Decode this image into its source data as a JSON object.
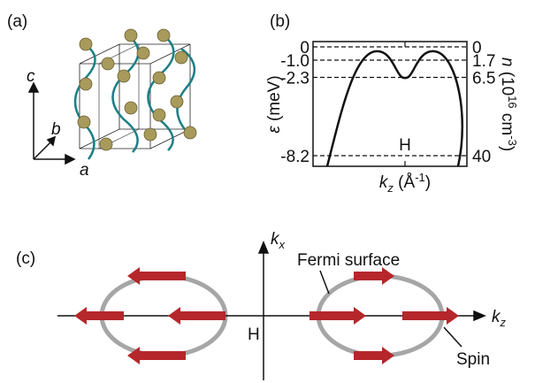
{
  "panel_a": {
    "label": "(a)",
    "axis_labels": {
      "c": "c",
      "b": "b",
      "a": "a"
    }
  },
  "panel_b": {
    "label": "(b)",
    "y_label": [
      "ε",
      " (meV)"
    ],
    "y2_label": [
      "n",
      " (10",
      "16",
      " cm",
      "-3",
      ")"
    ],
    "x_label": [
      "k",
      "z",
      " (Å",
      "-1",
      ")"
    ],
    "point_label": "H",
    "ylim": [
      -9,
      0.4
    ],
    "yticks": [
      0,
      {
        "value": -1.0,
        "label": "-1.0"
      },
      {
        "value": -2.3,
        "label": "-2.3"
      },
      {
        "value": -8.2,
        "label": "-8.2"
      }
    ],
    "y2ticks": [
      0,
      1.7,
      6.5,
      40
    ]
  },
  "panel_c": {
    "label": "(c)",
    "kx_label": [
      "k",
      "x"
    ],
    "kz_label": [
      "k",
      "z"
    ],
    "fermi_label": "Fermi surface",
    "point_label": "H",
    "spin_label": "Spin"
  }
}
